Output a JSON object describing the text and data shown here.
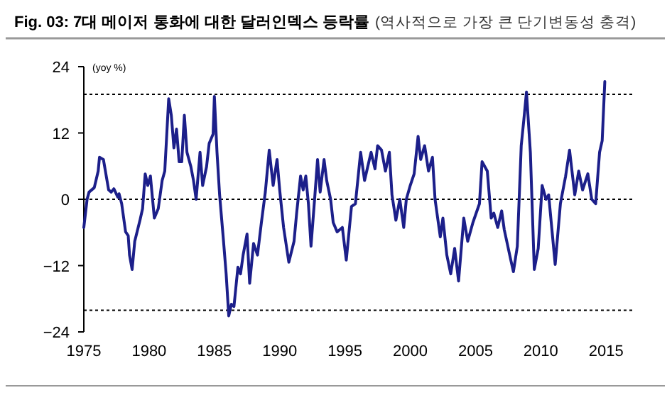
{
  "chart_data": {
    "type": "line",
    "title": "Fig. 03: 7대 메이저 통화에 대한 달러인덱스 등락률",
    "subtitle": "(역사적으로 가장 큰 단기변동성 충격)",
    "ylabel": "(yoy %)",
    "xlim": [
      1975,
      2017
    ],
    "xticks": [
      1975,
      1980,
      1985,
      1990,
      1995,
      2000,
      2005,
      2010,
      2015
    ],
    "ylim": [
      -24,
      24
    ],
    "yticks": [
      -24,
      -12,
      0,
      12,
      24
    ],
    "grid": false,
    "marker": "none",
    "line_style": "solid",
    "ref_lines": [
      {
        "axis": "y",
        "value": 0,
        "label": null,
        "color": "#000000",
        "line_style": "dotted"
      },
      {
        "axis": "y",
        "value": 19,
        "label": null,
        "color": "#000000",
        "line_style": "dotted"
      },
      {
        "axis": "y",
        "value": -20.1,
        "label": null,
        "color": "#000000",
        "line_style": "dotted"
      }
    ],
    "series": [
      {
        "color": "#1c1f8a",
        "x": [
          1975.0,
          1975.25,
          1975.4,
          1975.8,
          1976.1,
          1976.2,
          1976.5,
          1976.9,
          1977.1,
          1977.3,
          1977.6,
          1977.7,
          1977.9,
          1978.2,
          1978.4,
          1978.5,
          1978.7,
          1978.9,
          1979.3,
          1979.5,
          1979.7,
          1979.9,
          1980.1,
          1980.4,
          1980.7,
          1981.0,
          1981.2,
          1981.5,
          1981.7,
          1981.9,
          1982.1,
          1982.3,
          1982.5,
          1982.7,
          1982.9,
          1983.2,
          1983.4,
          1983.6,
          1983.9,
          1984.1,
          1984.4,
          1984.6,
          1984.9,
          1985.0,
          1985.2,
          1985.4,
          1985.7,
          1985.9,
          1986.1,
          1986.3,
          1986.5,
          1986.8,
          1987.0,
          1987.2,
          1987.5,
          1987.7,
          1988.0,
          1988.3,
          1988.6,
          1988.9,
          1989.2,
          1989.5,
          1989.8,
          1990.0,
          1990.3,
          1990.7,
          1991.1,
          1991.3,
          1991.6,
          1991.8,
          1992.0,
          1992.2,
          1992.4,
          1992.7,
          1992.9,
          1993.1,
          1993.4,
          1993.6,
          1993.9,
          1994.1,
          1994.4,
          1994.8,
          1995.1,
          1995.5,
          1995.8,
          1996.2,
          1996.5,
          1997.0,
          1997.3,
          1997.5,
          1997.8,
          1998.1,
          1998.4,
          1998.6,
          1998.9,
          1999.2,
          1999.5,
          1999.7,
          2000.0,
          2000.3,
          2000.6,
          2000.8,
          2001.1,
          2001.4,
          2001.7,
          2001.9,
          2002.3,
          2002.5,
          2002.8,
          2003.1,
          2003.4,
          2003.7,
          2004.1,
          2004.4,
          2004.8,
          2005.3,
          2005.5,
          2005.9,
          2006.2,
          2006.4,
          2006.7,
          2007.0,
          2007.2,
          2007.7,
          2007.9,
          2008.2,
          2008.5,
          2008.7,
          2008.9,
          2009.2,
          2009.5,
          2009.8,
          2010.1,
          2010.4,
          2010.6,
          2011.1,
          2011.5,
          2011.9,
          2012.2,
          2012.6,
          2012.9,
          2013.2,
          2013.6,
          2013.9,
          2014.2,
          2014.5,
          2014.7,
          2014.9
        ],
        "values": [
          -5.1,
          0,
          1.3,
          2.1,
          5.1,
          7.6,
          7.2,
          1.7,
          1.3,
          1.9,
          0.4,
          1.0,
          -0.8,
          -5.9,
          -6.6,
          -10.1,
          -12.7,
          -7.6,
          -3.8,
          -1.7,
          4.6,
          2.5,
          4.2,
          -3.4,
          -1.7,
          3.4,
          5.1,
          18.2,
          15.2,
          9.3,
          12.7,
          6.8,
          6.8,
          15.2,
          8.5,
          5.9,
          3.4,
          0,
          8.5,
          2.5,
          5.9,
          10.1,
          11.8,
          18.6,
          8.5,
          0.8,
          -7.6,
          -13.5,
          -21.1,
          -19.0,
          -19.4,
          -12.3,
          -13.5,
          -10.1,
          -6.3,
          -15.2,
          -8.0,
          -10.1,
          -4.2,
          1.3,
          8.9,
          2.5,
          7.2,
          1.7,
          -5.1,
          -11.4,
          -7.6,
          -2.5,
          4.2,
          1.7,
          4.2,
          -0.8,
          -8.5,
          0.8,
          7.2,
          1.3,
          7.2,
          3.4,
          0,
          -4.2,
          -5.9,
          -5.1,
          -11.0,
          -1.3,
          -0.8,
          8.5,
          3.4,
          8.5,
          5.5,
          9.7,
          8.9,
          5.1,
          8.5,
          0.8,
          -3.8,
          0,
          -5.1,
          0,
          2.5,
          4.6,
          11.4,
          7.2,
          9.7,
          5.1,
          7.6,
          0,
          -6.8,
          -3.4,
          -10.1,
          -13.5,
          -8.9,
          -14.8,
          -3.4,
          -7.6,
          -4.2,
          -0.8,
          6.8,
          5.1,
          -3.4,
          -2.5,
          -5.1,
          -2.1,
          -5.5,
          -11.0,
          -13.1,
          -8.5,
          9.7,
          14.4,
          19.4,
          8.5,
          -12.7,
          -8.9,
          2.5,
          0,
          0.8,
          -11.8,
          -0.8,
          4.2,
          8.9,
          0.8,
          5.1,
          1.7,
          4.6,
          0,
          -0.8,
          8.5,
          10.6,
          21.3
        ]
      }
    ]
  }
}
